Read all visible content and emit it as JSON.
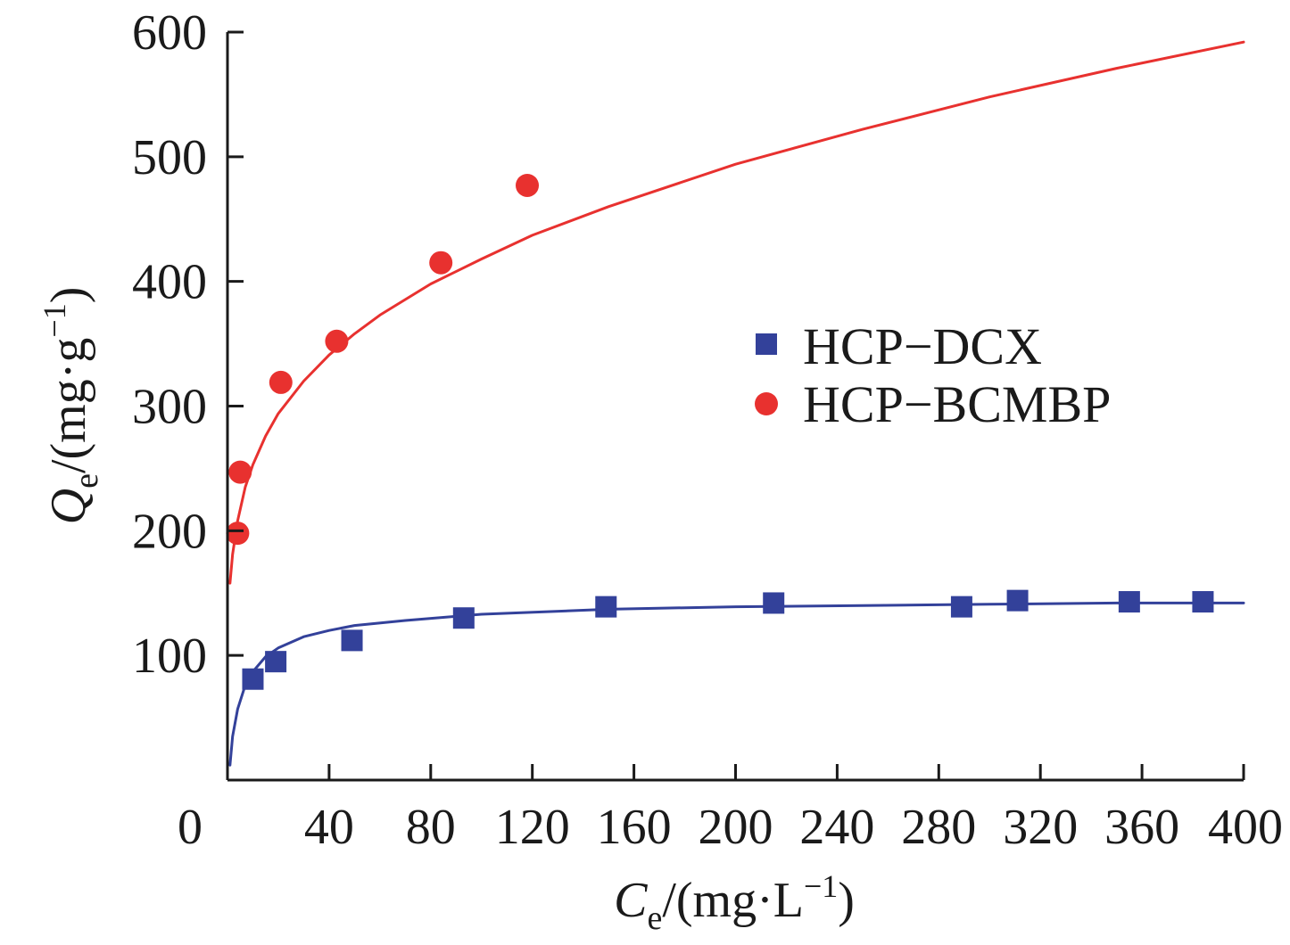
{
  "chart_data": {
    "type": "scatter",
    "xaxis": {
      "ticks": [
        0,
        40,
        80,
        120,
        160,
        200,
        240,
        280,
        320,
        360,
        400
      ],
      "tick_labels": [
        "0",
        "40",
        "80",
        "120",
        "160",
        "200",
        "240",
        "280",
        "320",
        "360",
        "400"
      ],
      "range": [
        0,
        400
      ],
      "label_main": "C",
      "label_sub": "e",
      "label_unit": "/(mg·L",
      "label_sup": "−1",
      "label_close": ")"
    },
    "yaxis": {
      "ticks": [
        100,
        200,
        300,
        400,
        500,
        600
      ],
      "tick_labels": [
        "100",
        "200",
        "300",
        "400",
        "500",
        "600"
      ],
      "range": [
        0,
        600
      ],
      "label_main": "Q",
      "label_sub": "e",
      "label_unit": "/(mg·g",
      "label_sup": "−1",
      "label_close": ")"
    },
    "grid": false,
    "legend_position": "right-middle",
    "series": [
      {
        "name": "HCP−DCX",
        "marker": "square",
        "color": "#33419a",
        "points": [
          [
            10,
            81
          ],
          [
            19,
            95
          ],
          [
            49,
            112
          ],
          [
            93,
            130
          ],
          [
            149,
            139
          ],
          [
            215,
            142
          ],
          [
            289,
            139
          ],
          [
            311,
            144
          ],
          [
            355,
            143
          ],
          [
            384,
            143
          ]
        ],
        "fit_curve": [
          [
            1,
            12
          ],
          [
            2,
            35
          ],
          [
            4,
            57
          ],
          [
            7,
            76
          ],
          [
            10,
            87
          ],
          [
            15,
            99
          ],
          [
            20,
            106
          ],
          [
            30,
            115
          ],
          [
            40,
            120
          ],
          [
            50,
            124
          ],
          [
            70,
            128
          ],
          [
            100,
            133
          ],
          [
            150,
            137
          ],
          [
            200,
            139
          ],
          [
            250,
            140
          ],
          [
            300,
            141
          ],
          [
            350,
            142
          ],
          [
            400,
            142
          ]
        ]
      },
      {
        "name": "HCP−BCMBP",
        "marker": "circle",
        "color": "#e8312f",
        "points": [
          [
            4,
            198
          ],
          [
            5,
            247
          ],
          [
            21,
            319
          ],
          [
            43,
            352
          ],
          [
            84,
            415
          ],
          [
            118,
            477
          ]
        ],
        "fit_curve": [
          [
            1,
            158
          ],
          [
            2,
            181
          ],
          [
            4,
            208
          ],
          [
            7,
            235
          ],
          [
            10,
            253
          ],
          [
            15,
            276
          ],
          [
            20,
            294
          ],
          [
            30,
            320
          ],
          [
            40,
            341
          ],
          [
            50,
            358
          ],
          [
            60,
            373
          ],
          [
            80,
            398
          ],
          [
            100,
            418
          ],
          [
            120,
            437
          ],
          [
            150,
            460
          ],
          [
            200,
            494
          ],
          [
            250,
            522
          ],
          [
            300,
            548
          ],
          [
            350,
            571
          ],
          [
            400,
            592
          ]
        ]
      }
    ]
  }
}
